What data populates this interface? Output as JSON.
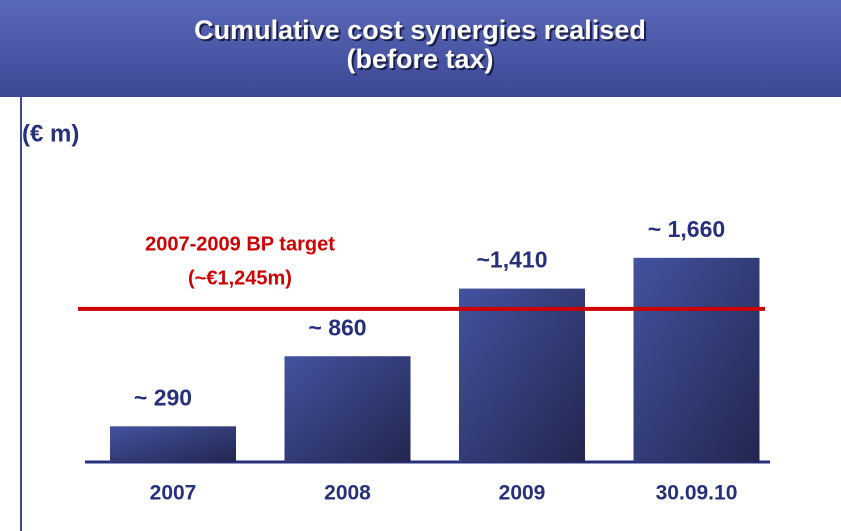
{
  "chart_data": {
    "type": "bar",
    "title": "Cumulative cost synergies realised",
    "subtitle": "(before tax)",
    "y_label": "(€ m)",
    "categories": [
      "2007",
      "2008",
      "2009",
      "30.09.10"
    ],
    "values": [
      290,
      860,
      1410,
      1660
    ],
    "value_labels": [
      "~ 290",
      "~ 860",
      "~1,410",
      "~ 1,660"
    ],
    "color": "#4452a0",
    "ylim": [
      0,
      2000
    ],
    "target": {
      "value": 1245,
      "label": "2007-2009 BP target",
      "value_label": "(~€1,245m)",
      "color": "#cc0000"
    }
  }
}
